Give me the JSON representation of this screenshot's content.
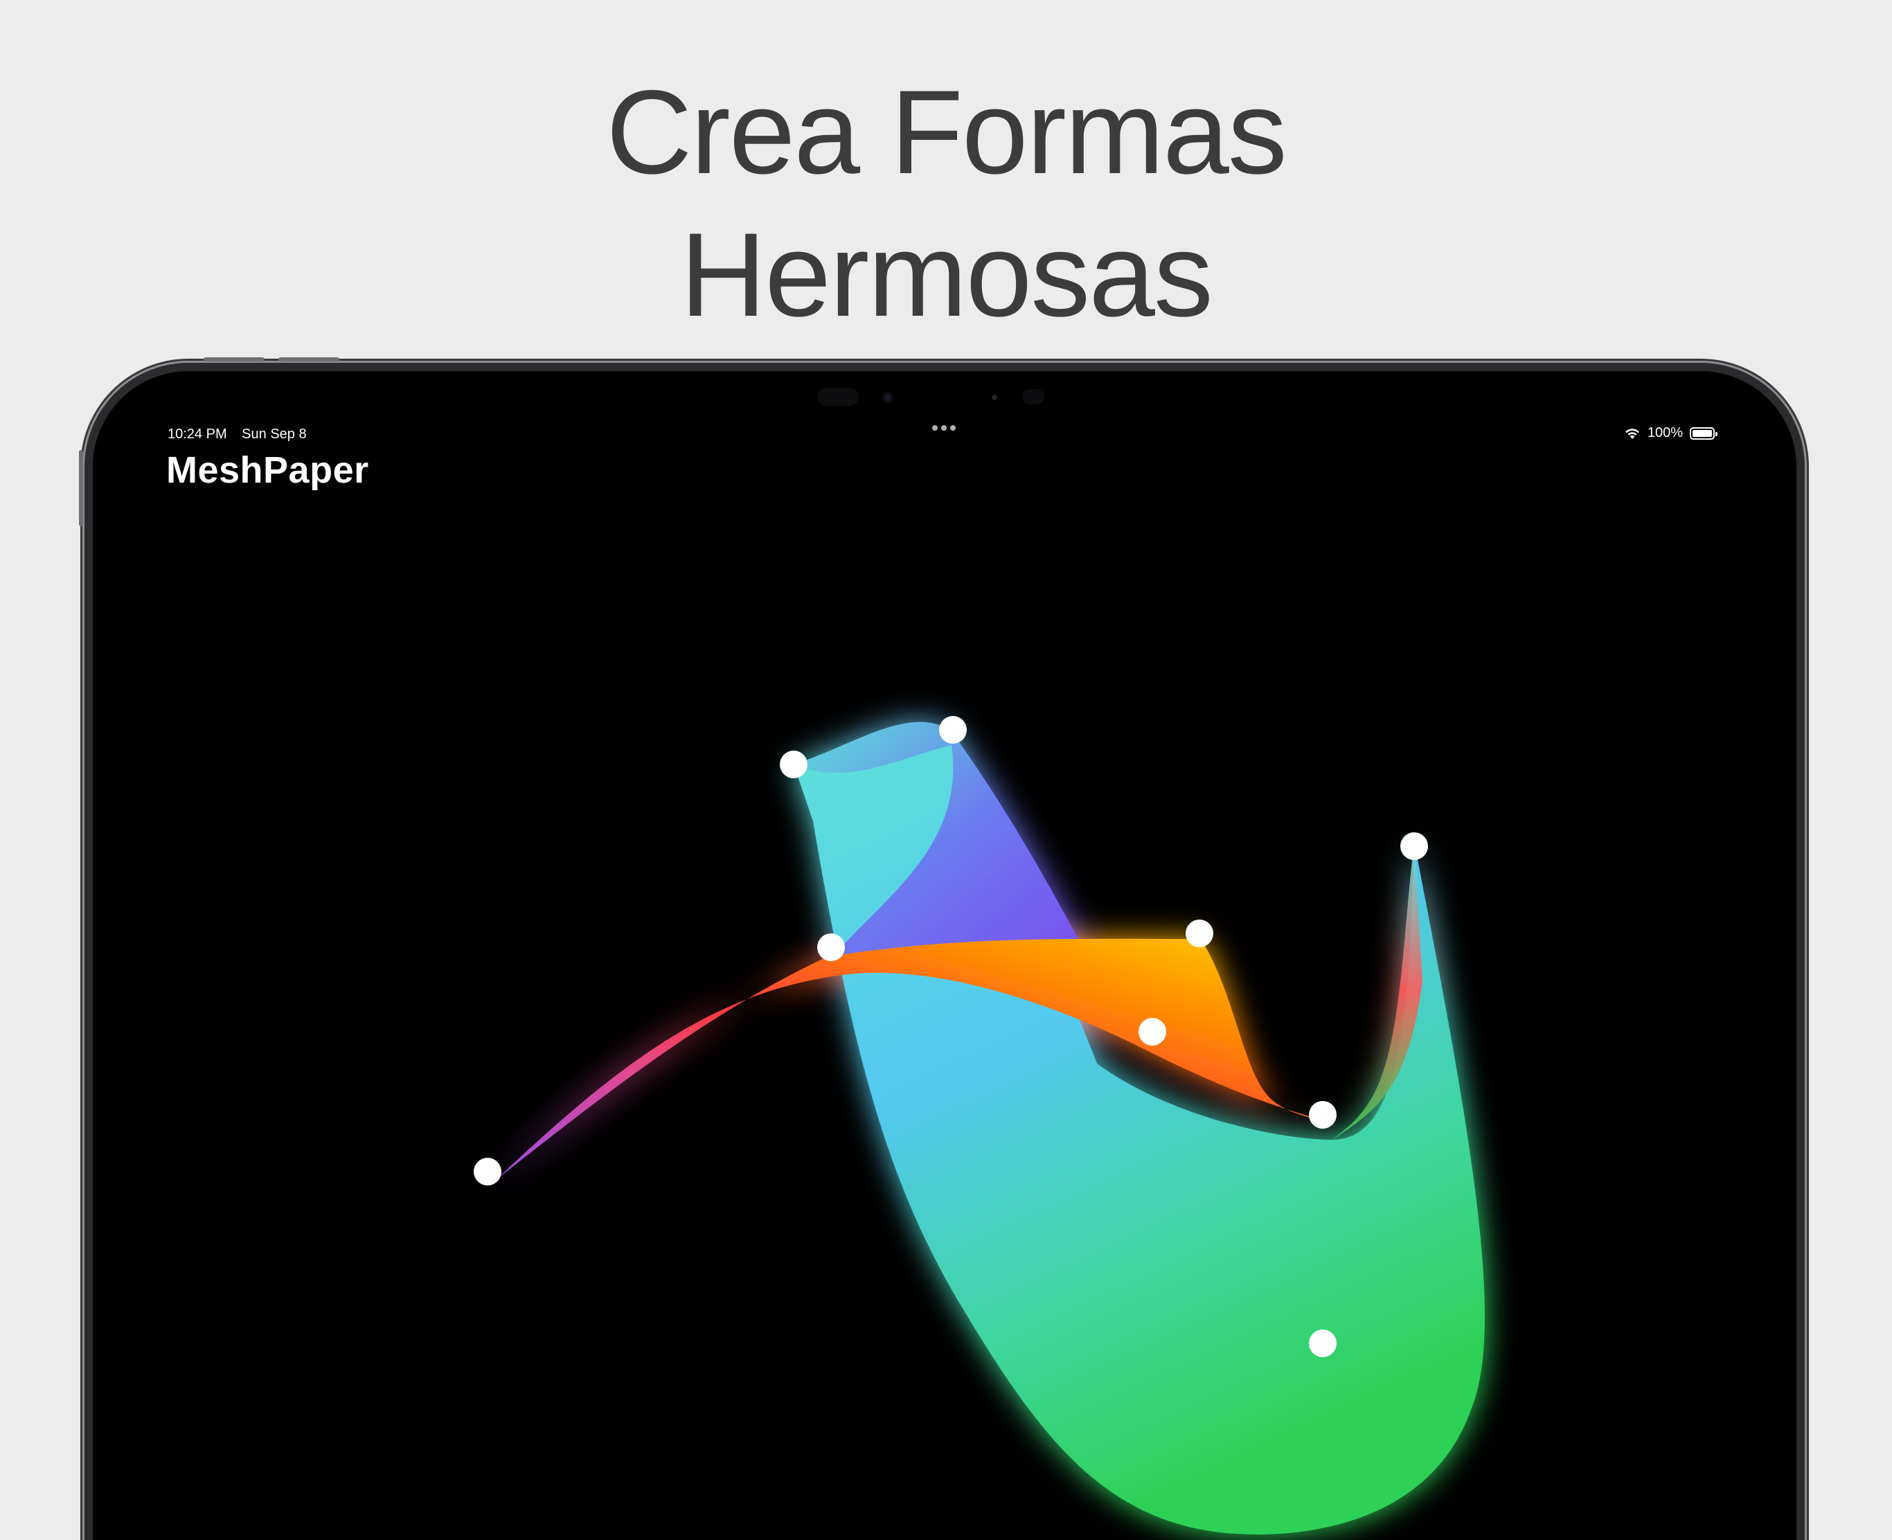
{
  "headline": {
    "line1": "Crea Formas",
    "line2": "Hermosas"
  },
  "status_bar": {
    "time": "10:24 PM",
    "date": "Sun Sep 8",
    "battery": "100%",
    "wifi_icon": "wifi-icon",
    "battery_icon": "battery-icon"
  },
  "app": {
    "title": "MeshPaper"
  },
  "colors": {
    "background": "#ececec",
    "headline": "#3c3c3c",
    "screen": "#000000",
    "cyan": "#5ee0d8",
    "blue_violet": "#6b5cf0",
    "yellow": "#ffd400",
    "orange": "#ff8a00",
    "red": "#ff3b3b",
    "magenta": "#c24bd8",
    "sky": "#54c8f0",
    "green": "#2ed158",
    "control_point": "#ffffff"
  },
  "control_points_count": 9
}
